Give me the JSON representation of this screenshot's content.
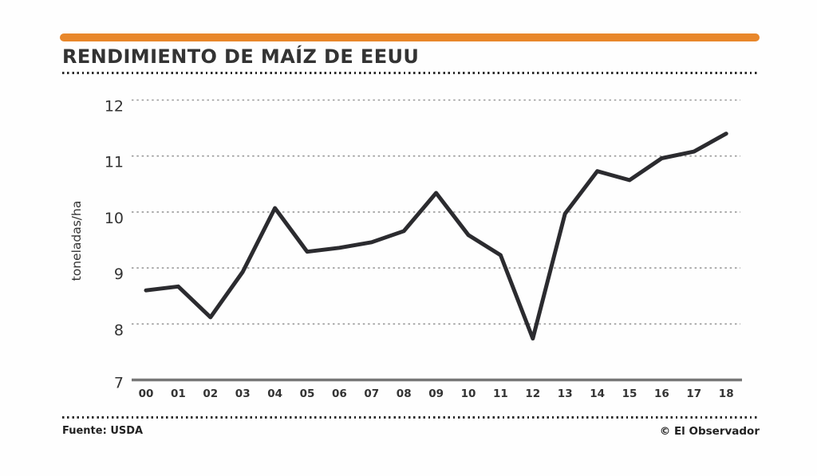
{
  "header": {
    "title": "RENDIMIENTO DE MAÍZ DE EEUU"
  },
  "footer": {
    "source": "Fuente: USDA",
    "credit": "© El Observador"
  },
  "colors": {
    "accent_orange": "#e8872b",
    "series_line": "#2b2b2f",
    "gridline": "#999999",
    "axis_line": "#777777",
    "text": "#333333"
  },
  "chart_data": {
    "type": "line",
    "title": "RENDIMIENTO DE MAÍZ DE EEUU",
    "xlabel": "",
    "ylabel": "toneladas/ha",
    "categories": [
      "00",
      "01",
      "02",
      "03",
      "04",
      "05",
      "06",
      "07",
      "08",
      "09",
      "10",
      "11",
      "12",
      "13",
      "14",
      "15",
      "16",
      "17",
      "18"
    ],
    "series": [
      {
        "name": "Rendimiento de maíz de EEUU (toneladas/ha)",
        "values": [
          8.6,
          8.67,
          8.12,
          8.93,
          10.07,
          9.29,
          9.36,
          9.46,
          9.66,
          10.34,
          9.59,
          9.23,
          7.74,
          9.97,
          10.73,
          10.57,
          10.96,
          11.08,
          11.4
        ]
      }
    ],
    "yticks": [
      7,
      8,
      9,
      10,
      11,
      12
    ],
    "ylim": [
      7,
      12.1
    ],
    "grid": "horizontal-dashed",
    "legend": "none"
  }
}
